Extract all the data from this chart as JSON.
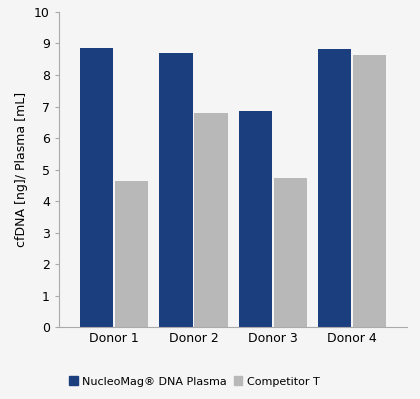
{
  "categories": [
    "Donor 1",
    "Donor 2",
    "Donor 3",
    "Donor 4"
  ],
  "nucleomag_values": [
    8.85,
    8.7,
    6.87,
    8.82
  ],
  "competitor_values": [
    4.65,
    6.8,
    4.73,
    8.65
  ],
  "nucleomag_color": "#1b3f7e",
  "competitor_color": "#b8b8b8",
  "ylabel": "cfDNA [ng]/ Plasma [mL]",
  "ylim": [
    0,
    10
  ],
  "yticks": [
    0,
    1,
    2,
    3,
    4,
    5,
    6,
    7,
    8,
    9,
    10
  ],
  "legend_nucleomag": "NucleoMag® DNA Plasma",
  "legend_competitor": "Competitor T",
  "bar_width": 0.42,
  "background_color": "#f5f5f5",
  "tick_fontsize": 9,
  "axis_fontsize": 9,
  "legend_fontsize": 8
}
